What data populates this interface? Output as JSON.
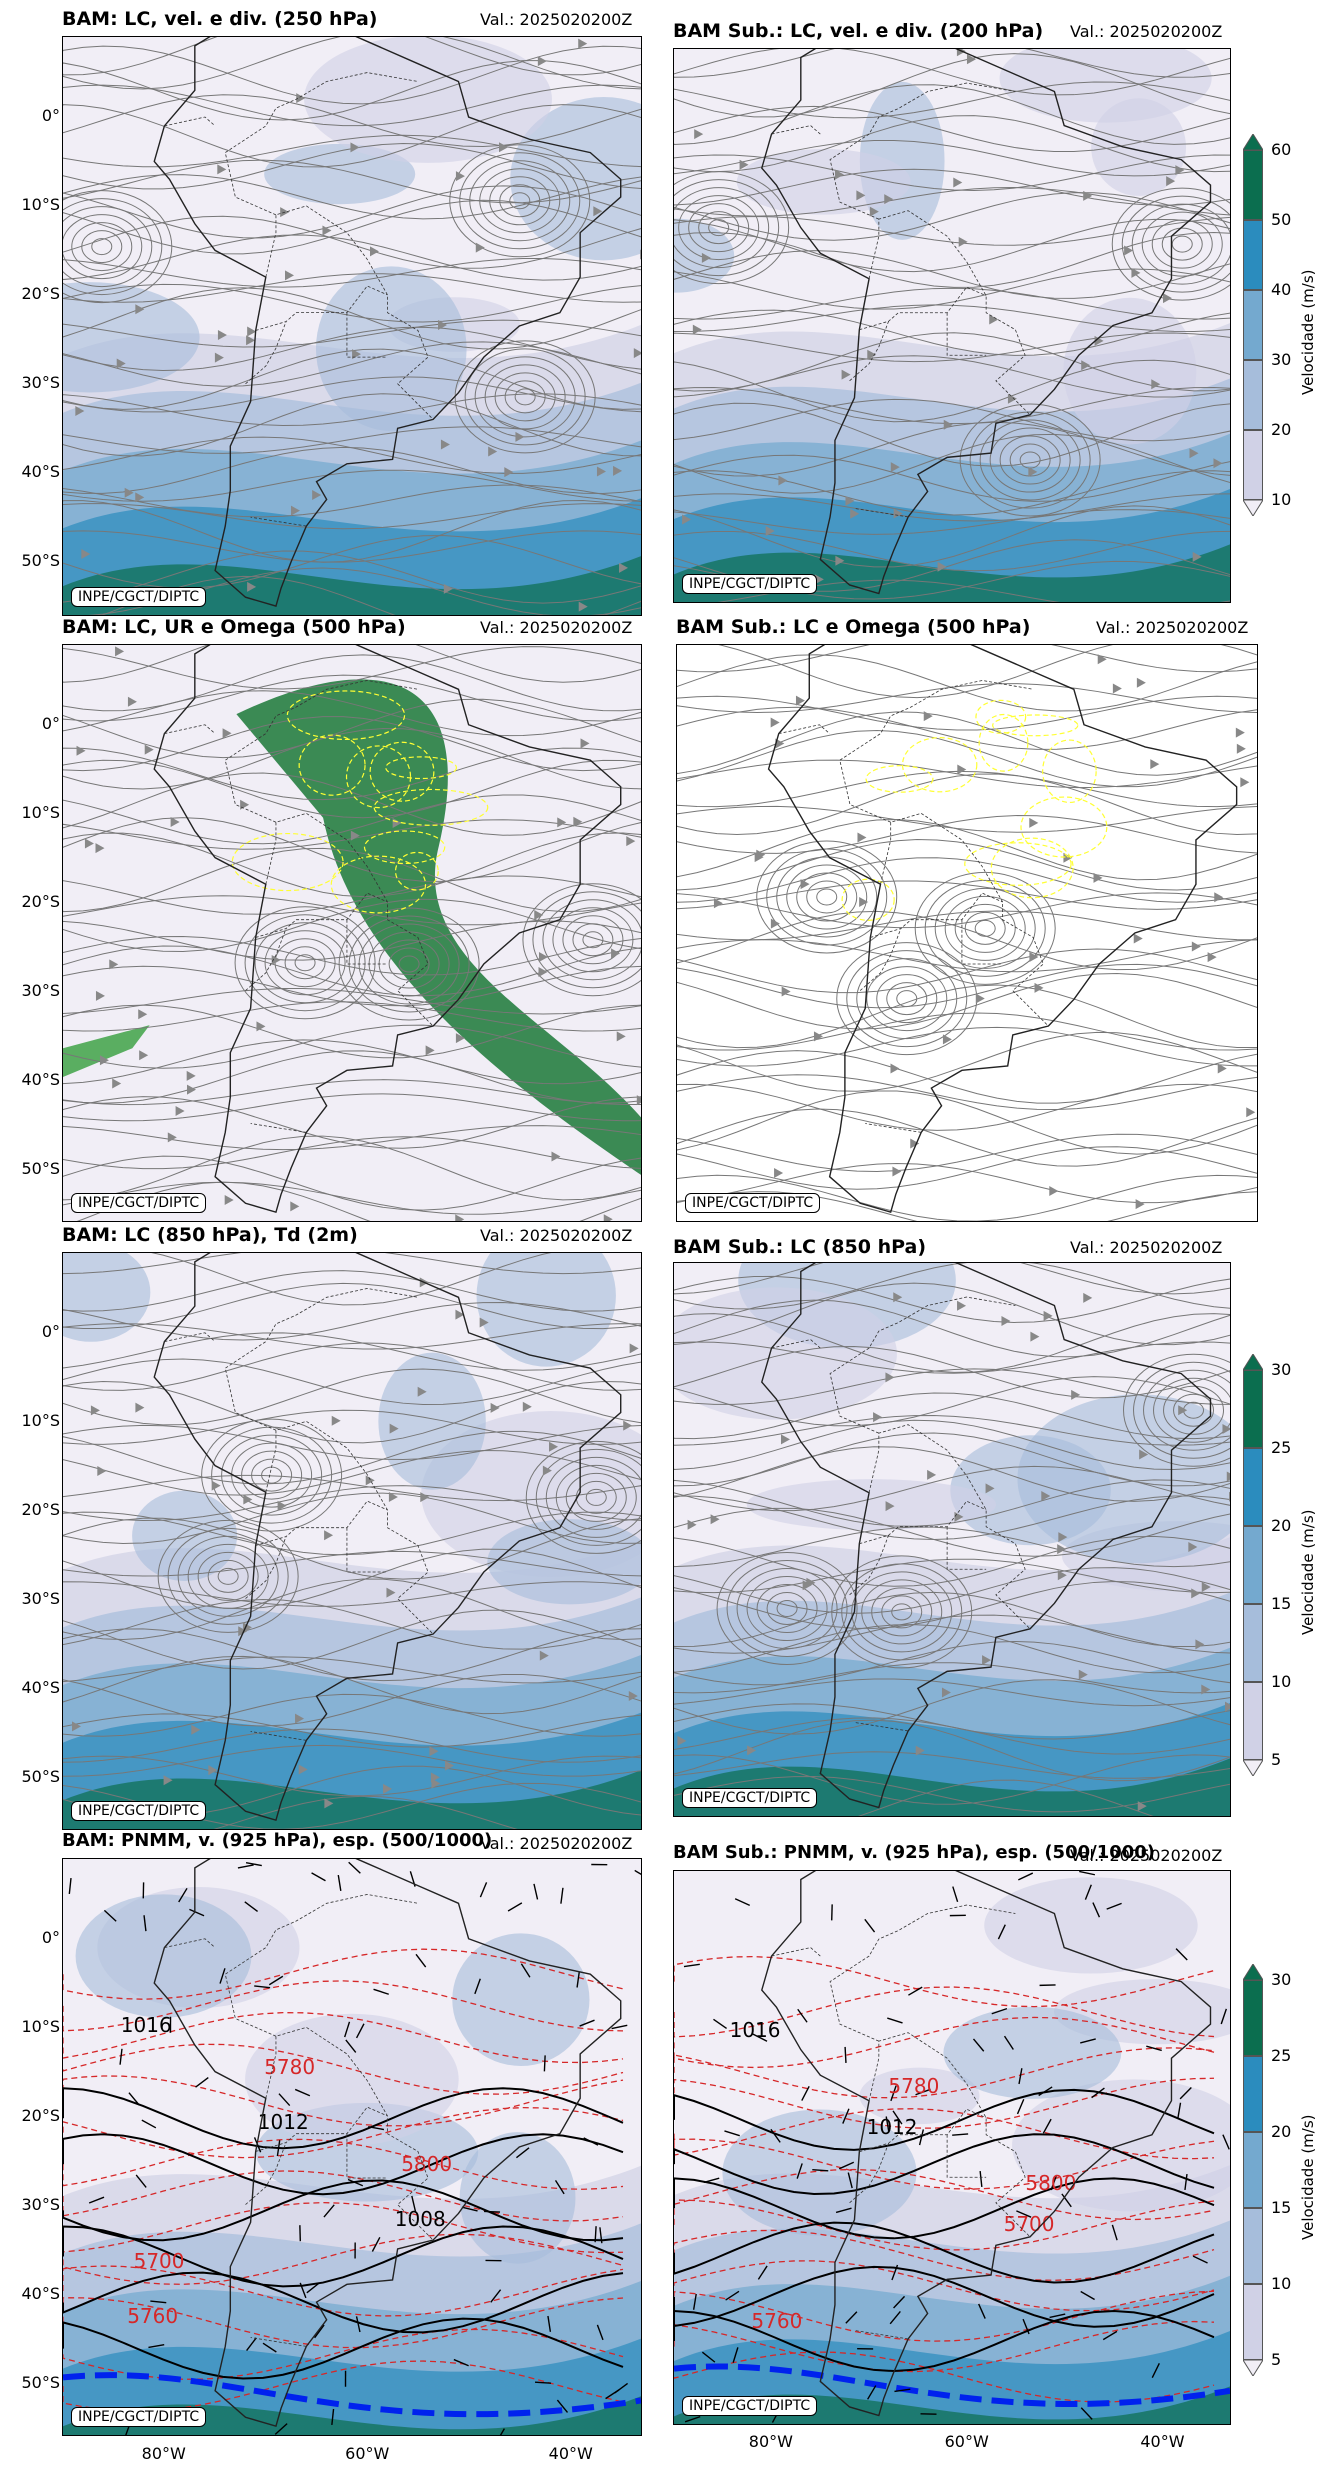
{
  "panels": [
    {
      "id": "p1",
      "title": "BAM: LC, vel. e div. (250 hPa)",
      "valid": "Val.: 2025020200Z",
      "credit": "INPE/CGCT/DIPTC",
      "style": "wind"
    },
    {
      "id": "p2",
      "title": "BAM Sub.: LC, vel. e div. (200 hPa)",
      "valid": "Val.: 2025020200Z",
      "credit": "INPE/CGCT/DIPTC",
      "style": "wind"
    },
    {
      "id": "p3",
      "title": "BAM: LC, UR e Omega (500 hPa)",
      "valid": "Val.: 2025020200Z",
      "credit": "INPE/CGCT/DIPTC",
      "style": "humid"
    },
    {
      "id": "p4",
      "title": "BAM Sub.: LC e Omega (500 hPa)",
      "valid": "Val.: 2025020200Z",
      "credit": "INPE/CGCT/DIPTC",
      "style": "plain"
    },
    {
      "id": "p5",
      "title": "BAM: LC (850 hPa), Td (2m)",
      "valid": "Val.: 2025020200Z",
      "credit": "INPE/CGCT/DIPTC",
      "style": "wind"
    },
    {
      "id": "p6",
      "title": "BAM Sub.: LC (850 hPa)",
      "valid": "Val.: 2025020200Z",
      "credit": "INPE/CGCT/DIPTC",
      "style": "wind"
    },
    {
      "id": "p7",
      "title": "BAM: PNMM, v. (925 hPa), esp. (500/1000)",
      "valid": "Val.: 2025020200Z",
      "credit": "INPE/CGCT/DIPTC",
      "style": "pressure"
    },
    {
      "id": "p8",
      "title": "BAM Sub.: PNMM, v. (925 hPa), esp. (500/1000)",
      "valid": "Val.: 2025020200Z",
      "credit": "INPE/CGCT/DIPTC",
      "style": "pressure"
    }
  ],
  "lat_ticks": [
    "0°",
    "10°S",
    "20°S",
    "30°S",
    "40°S",
    "50°S"
  ],
  "lon_ticks": [
    "80°W",
    "60°W",
    "40°W"
  ],
  "colorbars": [
    {
      "id": "cb1",
      "label": "Velocidade (m/s)",
      "ticks": [
        "60",
        "50",
        "40",
        "30",
        "20",
        "10"
      ],
      "colors": [
        "#0b6e4f",
        "#2b8cbe",
        "#74a9cf",
        "#a6bddb",
        "#d0d1e6",
        "#f1eef6"
      ]
    },
    {
      "id": "cb2",
      "label": "Velocidade (m/s)",
      "ticks": [
        "30",
        "25",
        "20",
        "15",
        "10",
        "5"
      ],
      "colors": [
        "#0b6e4f",
        "#2b8cbe",
        "#74a9cf",
        "#a6bddb",
        "#d0d1e6",
        "#f1eef6"
      ]
    },
    {
      "id": "cb3",
      "label": "Velocidade (m/s)",
      "ticks": [
        "30",
        "25",
        "20",
        "15",
        "10",
        "5"
      ],
      "colors": [
        "#0b6e4f",
        "#2b8cbe",
        "#74a9cf",
        "#a6bddb",
        "#d0d1e6",
        "#f1eef6"
      ]
    }
  ],
  "contour_labels": {
    "p7": [
      "1016",
      "1012",
      "1008",
      "5760",
      "5780",
      "5800",
      "5700"
    ],
    "p8": [
      "1016",
      "1012",
      "5700",
      "5760",
      "5780",
      "5800"
    ]
  },
  "chart_data": {
    "type": "heatmap",
    "map_extent": {
      "lon": [
        -90,
        -33
      ],
      "lat": [
        -56,
        9
      ]
    },
    "fields": [
      "streamlines",
      "wind speed",
      "divergence",
      "relative humidity",
      "omega",
      "dew point",
      "sea level pressure",
      "thickness 500/1000"
    ]
  }
}
